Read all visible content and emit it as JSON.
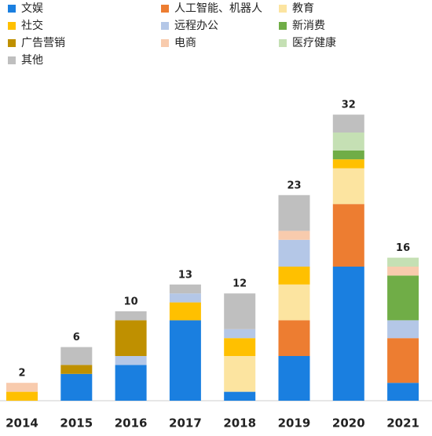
{
  "chart_data": {
    "type": "stacked-bar",
    "categories": [
      "2014",
      "2015",
      "2016",
      "2017",
      "2018",
      "2019",
      "2020",
      "2021"
    ],
    "series": [
      {
        "name": "文娱",
        "color": "#1a7fe0",
        "values": [
          0,
          3,
          4,
          9,
          1,
          5,
          15,
          2
        ]
      },
      {
        "name": "人工智能、机器人",
        "color": "#ed7d31",
        "values": [
          0,
          0,
          0,
          0,
          0,
          4,
          7,
          5
        ]
      },
      {
        "name": "教育",
        "color": "#fce4a0",
        "values": [
          0,
          0,
          0,
          0,
          4,
          4,
          4,
          0
        ]
      },
      {
        "name": "社交",
        "color": "#ffc000",
        "values": [
          1,
          0,
          0,
          2,
          2,
          2,
          1,
          0
        ]
      },
      {
        "name": "远程办公",
        "color": "#b4c7e7",
        "values": [
          0,
          0,
          1,
          1,
          1,
          3,
          0,
          2
        ]
      },
      {
        "name": "新消费",
        "color": "#70ad47",
        "values": [
          0,
          0,
          0,
          0,
          0,
          0,
          1,
          5
        ]
      },
      {
        "name": "广告营销",
        "color": "#bf9000",
        "values": [
          0,
          1,
          4,
          0,
          0,
          0,
          0,
          0
        ]
      },
      {
        "name": "电商",
        "color": "#f8cbad",
        "values": [
          1,
          0,
          0,
          0,
          0,
          1,
          0,
          1
        ]
      },
      {
        "name": "医疗健康",
        "color": "#c5e0b4",
        "values": [
          0,
          0,
          0,
          0,
          0,
          0,
          2,
          1
        ]
      },
      {
        "name": "其他",
        "color": "#bfbfbf",
        "values": [
          0,
          2,
          1,
          1,
          4,
          4,
          2,
          0
        ]
      }
    ],
    "totals": [
      2,
      6,
      10,
      13,
      12,
      23,
      32,
      16
    ],
    "ylim": [
      0,
      35
    ]
  }
}
